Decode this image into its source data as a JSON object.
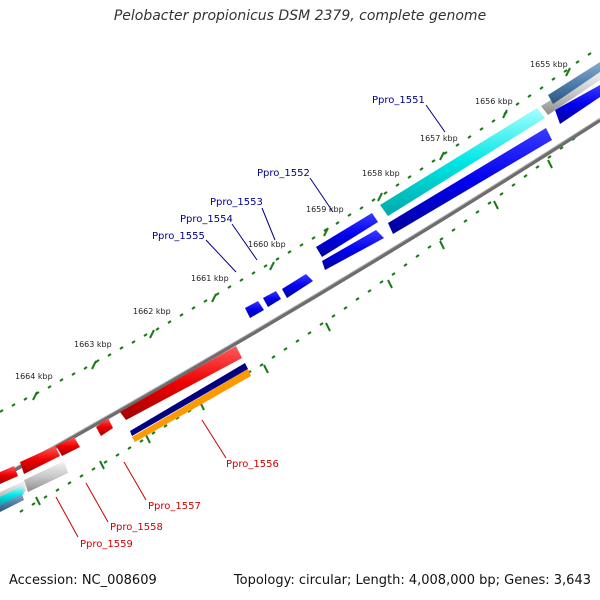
{
  "title": "Pelobacter propionicus DSM 2379, complete genome",
  "footer": {
    "accession": "Accession: NC_008609",
    "summary": "Topology: circular; Length: 4,008,000 bp; Genes: 3,643"
  },
  "scale_labels": [
    "1655 kbp",
    "1656 kbp",
    "1657 kbp",
    "1658 kbp",
    "1659 kbp",
    "1660 kbp",
    "1661 kbp",
    "1662 kbp",
    "1663 kbp",
    "1664 kbp"
  ],
  "genes": [
    {
      "label": "Ppro_1551",
      "color": "#00008b"
    },
    {
      "label": "Ppro_1552",
      "color": "#00008b"
    },
    {
      "label": "Ppro_1553",
      "color": "#00008b"
    },
    {
      "label": "Ppro_1554",
      "color": "#00008b"
    },
    {
      "label": "Ppro_1555",
      "color": "#00008b"
    },
    {
      "label": "Ppro_1556",
      "color": "#cc0000"
    },
    {
      "label": "Ppro_1557",
      "color": "#cc0000"
    },
    {
      "label": "Ppro_1558",
      "color": "#cc0000"
    },
    {
      "label": "Ppro_1559",
      "color": "#cc0000"
    }
  ],
  "colors": {
    "forward_strand": "#0000ee",
    "reverse_strand": "#ee0000",
    "highlight_cyan": "#00e5e5",
    "orange_track": "#ff9900",
    "navy_track": "#000080",
    "backbone": "#777777",
    "tick": "#1a7a1a"
  }
}
